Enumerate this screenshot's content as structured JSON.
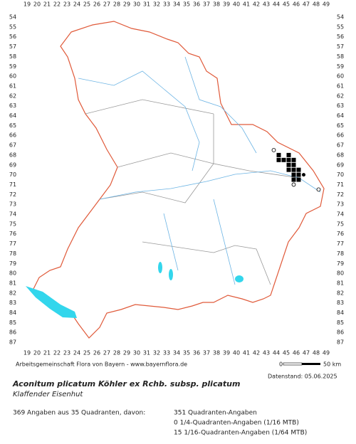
{
  "map": {
    "xticks": [
      19,
      20,
      21,
      22,
      23,
      24,
      25,
      26,
      27,
      28,
      29,
      30,
      31,
      32,
      33,
      34,
      35,
      36,
      37,
      38,
      39,
      40,
      41,
      42,
      43,
      44,
      45,
      46,
      47,
      48,
      49
    ],
    "yticks": [
      54,
      55,
      56,
      57,
      58,
      59,
      60,
      61,
      62,
      63,
      64,
      65,
      66,
      67,
      68,
      69,
      70,
      71,
      72,
      73,
      74,
      75,
      76,
      77,
      78,
      79,
      80,
      81,
      82,
      83,
      84,
      85,
      86,
      87
    ],
    "filled_squares": [
      [
        44.25,
        68
      ],
      [
        45.25,
        68
      ],
      [
        44.25,
        68.5
      ],
      [
        44.75,
        68.5
      ],
      [
        45.25,
        68.5
      ],
      [
        45.75,
        68.5
      ],
      [
        45.25,
        69
      ],
      [
        45.75,
        69
      ],
      [
        45.25,
        69.5
      ],
      [
        45.75,
        69.5
      ],
      [
        46.25,
        69.5
      ],
      [
        45.75,
        70
      ],
      [
        46.25,
        70
      ],
      [
        45.75,
        70.5
      ],
      [
        46.25,
        70.5
      ]
    ],
    "dots": [
      [
        46.75,
        70
      ]
    ],
    "circles": [
      [
        43.75,
        67.5
      ],
      [
        45.75,
        71
      ],
      [
        48.25,
        71.5
      ]
    ]
  },
  "footer": {
    "credit": "Arbeitsgemeinschaft Flora von Bayern - www.bayernflora.de",
    "scale_start": "0",
    "scale_end": "50 km",
    "date": "Datenstand: 05.06.2025"
  },
  "species": {
    "name": "Aconitum plicatum Köhler ex Rchb. subsp. plicatum",
    "common_name": "Klaffender Eisenhut"
  },
  "stats": {
    "summary": "369 Angaben aus 35 Quadranten, davon:",
    "lines": [
      "351 Quadranten-Angaben",
      "0 1/4-Quadranten-Angaben (1/16 MTB)",
      "15 1/16-Quadranten-Angaben (1/64 MTB)"
    ]
  }
}
